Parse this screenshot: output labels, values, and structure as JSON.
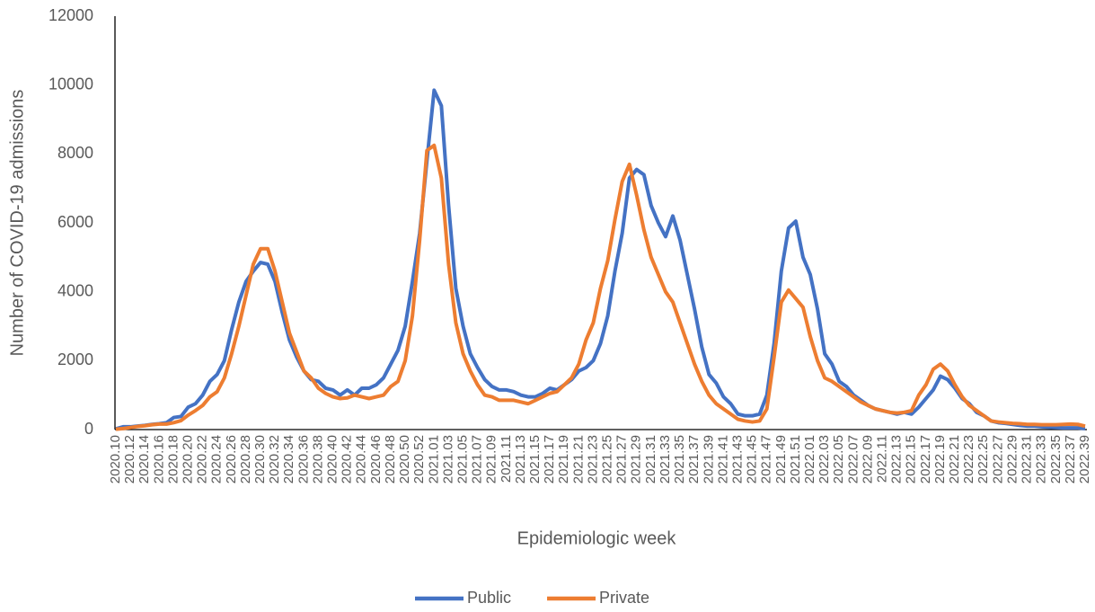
{
  "chart_data": {
    "type": "line",
    "y_label": "Number of COVID-19 admissions",
    "x_label": "Epidemiologic week",
    "ylim": [
      0,
      12000
    ],
    "yticks": [
      0,
      2000,
      4000,
      6000,
      8000,
      10000,
      12000
    ],
    "grid": false,
    "legend": "bottom",
    "categories": [
      "2020.10",
      null,
      "2020.12",
      null,
      "2020.14",
      null,
      "2020.16",
      null,
      "2020.18",
      null,
      "2020.20",
      null,
      "2020.22",
      null,
      "2020.24",
      null,
      "2020.26",
      null,
      "2020.28",
      null,
      "2020.30",
      null,
      "2020.32",
      null,
      "2020.34",
      null,
      "2020.36",
      null,
      "2020.38",
      null,
      "2020.40",
      null,
      "2020.42",
      null,
      "2020.44",
      null,
      "2020.46",
      null,
      "2020.48",
      null,
      "2020.50",
      null,
      "2020.52",
      null,
      "2021.01",
      null,
      "2021.03",
      null,
      "2021.05",
      null,
      "2021.07",
      null,
      "2021.09",
      null,
      "2021.11",
      null,
      "2021.13",
      null,
      "2021.15",
      null,
      "2021.17",
      null,
      "2021.19",
      null,
      "2021.21",
      null,
      "2021.23",
      null,
      "2021.25",
      null,
      "2021.27",
      null,
      "2021.29",
      null,
      "2021.31",
      null,
      "2021.33",
      null,
      "2021.35",
      null,
      "2021.37",
      null,
      "2021.39",
      null,
      "2021.41",
      null,
      "2021.43",
      null,
      "2021.45",
      null,
      "2021.47",
      null,
      "2021.49",
      null,
      "2021.51",
      null,
      "2022.01",
      null,
      "2022.03",
      null,
      "2022.05",
      null,
      "2022.07",
      null,
      "2022.09",
      null,
      "2022.11",
      null,
      "2022.13",
      null,
      "2022.15",
      null,
      "2022.17",
      null,
      "2022.19",
      null,
      "2022.21",
      null,
      "2022.23",
      null,
      "2022.25",
      null,
      "2022.27",
      null,
      "2022.29",
      null,
      "2022.31",
      null,
      "2022.33",
      null,
      "2022.35",
      null,
      "2022.37",
      null,
      "2022.39"
    ],
    "series": [
      {
        "name": "Public",
        "color": "#4472c4",
        "values": [
          20,
          80,
          80,
          100,
          120,
          150,
          170,
          200,
          350,
          380,
          650,
          750,
          1000,
          1400,
          1600,
          2000,
          2900,
          3700,
          4300,
          4600,
          4850,
          4800,
          4300,
          3400,
          2600,
          2100,
          1700,
          1450,
          1400,
          1200,
          1150,
          1000,
          1150,
          1000,
          1200,
          1200,
          1300,
          1500,
          1900,
          2300,
          3000,
          4300,
          5700,
          7800,
          9850,
          9400,
          6500,
          4100,
          3000,
          2200,
          1800,
          1450,
          1250,
          1150,
          1150,
          1100,
          1000,
          950,
          950,
          1050,
          1200,
          1150,
          1300,
          1450,
          1700,
          1800,
          2000,
          2500,
          3300,
          4600,
          5700,
          7300,
          7550,
          7400,
          6500,
          6000,
          5600,
          6200,
          5500,
          4500,
          3500,
          2400,
          1600,
          1350,
          950,
          750,
          450,
          400,
          400,
          450,
          1000,
          2500,
          4600,
          5850,
          6050,
          5000,
          4500,
          3500,
          2200,
          1900,
          1400,
          1250,
          1000,
          850,
          700,
          600,
          550,
          500,
          450,
          500,
          450,
          650,
          900,
          1150,
          1550,
          1450,
          1200,
          900,
          750,
          500,
          400,
          250,
          200,
          180,
          150,
          120,
          100,
          100,
          80,
          70,
          60,
          50,
          50,
          50,
          30
        ]
      },
      {
        "name": "Private",
        "color": "#ed7d31",
        "values": [
          10,
          30,
          60,
          90,
          110,
          140,
          160,
          160,
          200,
          260,
          420,
          550,
          700,
          950,
          1100,
          1500,
          2200,
          3000,
          3900,
          4800,
          5250,
          5250,
          4600,
          3700,
          2800,
          2250,
          1700,
          1500,
          1200,
          1050,
          950,
          900,
          920,
          1000,
          950,
          900,
          950,
          1000,
          1250,
          1400,
          2000,
          3300,
          5500,
          8100,
          8250,
          7300,
          4800,
          3100,
          2200,
          1700,
          1300,
          1000,
          950,
          850,
          850,
          850,
          800,
          750,
          850,
          950,
          1050,
          1100,
          1300,
          1500,
          1900,
          2600,
          3100,
          4100,
          4900,
          6100,
          7200,
          7700,
          6800,
          5800,
          5000,
          4500,
          4000,
          3700,
          3100,
          2500,
          1900,
          1400,
          1000,
          750,
          600,
          450,
          300,
          250,
          220,
          250,
          600,
          2100,
          3700,
          4050,
          3800,
          3550,
          2700,
          2000,
          1500,
          1400,
          1250,
          1100,
          950,
          800,
          700,
          600,
          550,
          500,
          480,
          500,
          550,
          1000,
          1300,
          1750,
          1900,
          1700,
          1300,
          950,
          700,
          550,
          400,
          250,
          220,
          200,
          180,
          170,
          150,
          150,
          140,
          140,
          140,
          150,
          160,
          150,
          100
        ]
      }
    ]
  }
}
